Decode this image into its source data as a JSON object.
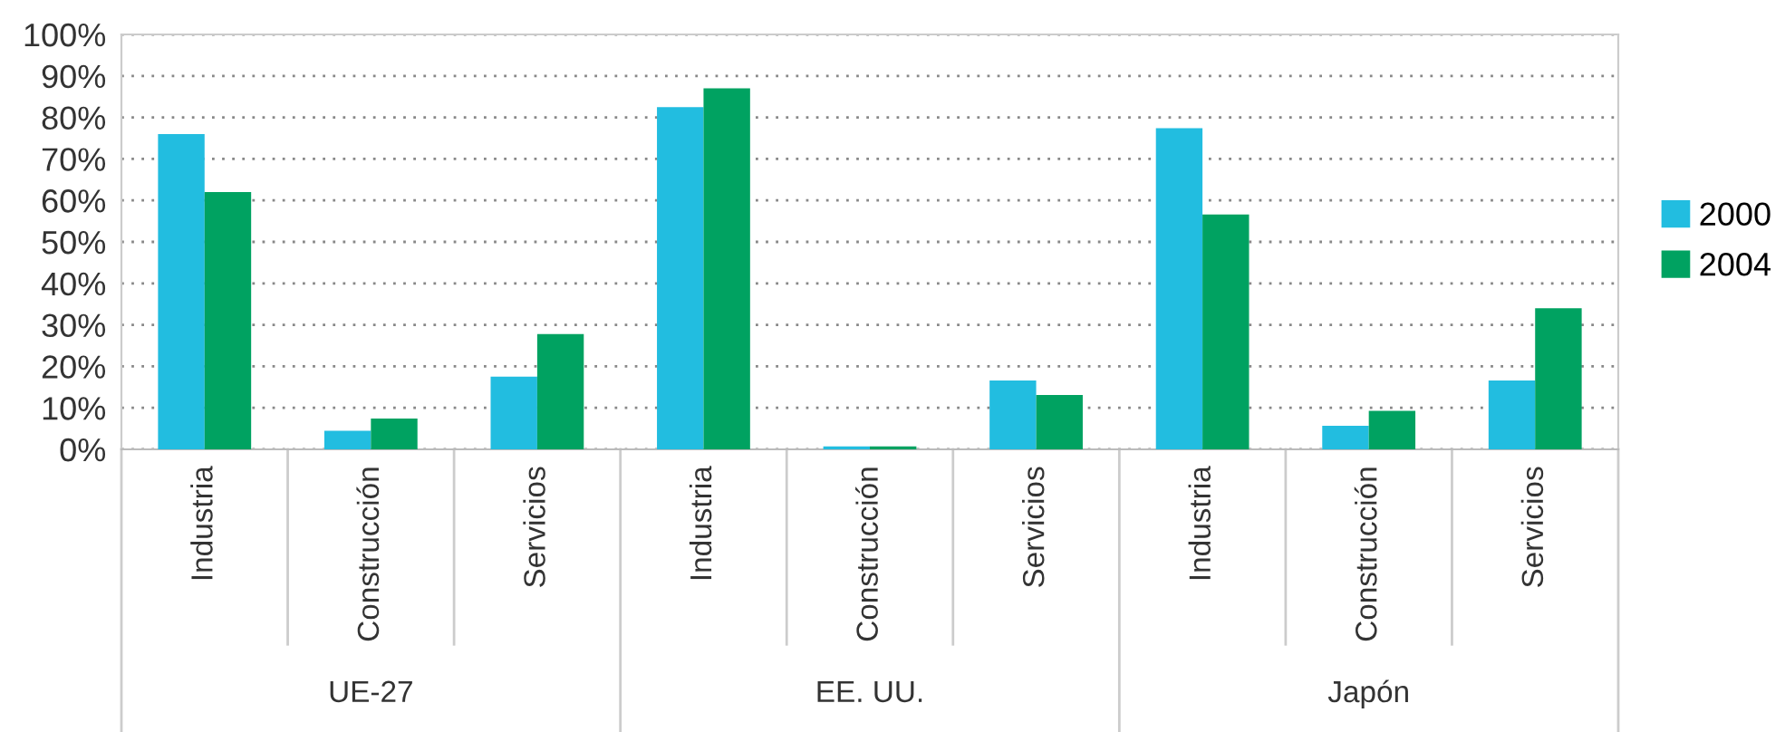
{
  "chart_data": {
    "type": "bar",
    "categories": [
      "Industria",
      "Construcción",
      "Servicios",
      "Industria",
      "Construcción",
      "Servicios",
      "Industria",
      "Construcción",
      "Servicios"
    ],
    "series": [
      {
        "name": "2000",
        "color": "#22bde0",
        "values": [
          76,
          4.5,
          17.5,
          82.5,
          0.7,
          16.6,
          77.4,
          5.7,
          16.6
        ]
      },
      {
        "name": "2004",
        "color": "#00a261",
        "values": [
          62,
          7.4,
          27.8,
          87,
          0.7,
          13.1,
          56.6,
          9.3,
          34
        ]
      }
    ],
    "annotations": [
      "UE-27",
      "EE. UU.",
      "Japón"
    ],
    "ylim": [
      0,
      100
    ],
    "yticks": [
      {
        "value": 0,
        "label": "0%"
      },
      {
        "value": 10,
        "label": "10%"
      },
      {
        "value": 20,
        "label": "20%"
      },
      {
        "value": 30,
        "label": "30%"
      },
      {
        "value": 40,
        "label": "40%"
      },
      {
        "value": 50,
        "label": "50%"
      },
      {
        "value": 60,
        "label": "60%"
      },
      {
        "value": 70,
        "label": "70%"
      },
      {
        "value": 80,
        "label": "80%"
      },
      {
        "value": 90,
        "label": "90%"
      },
      {
        "value": 100,
        "label": "100%"
      }
    ],
    "grid": "y",
    "legend": "right"
  }
}
